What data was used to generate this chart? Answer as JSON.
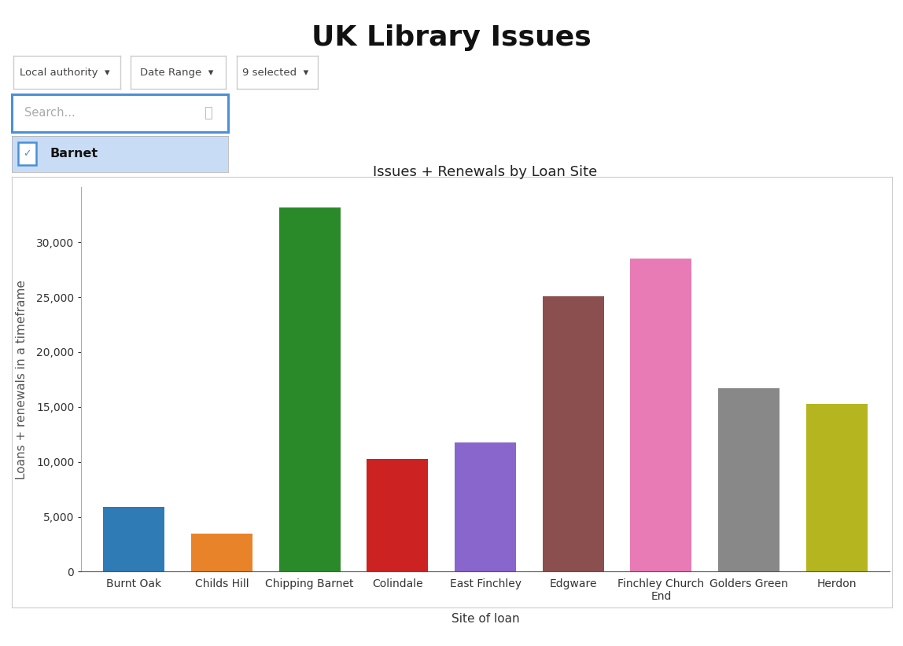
{
  "title": "UK Library Issues",
  "chart_title": "Issues + Renewals by Loan Site",
  "xlabel": "Site of loan",
  "ylabel": "Loans + renewals in a timeframe",
  "categories": [
    "Burnt Oak",
    "Childs Hill",
    "Chipping Barnet",
    "Colindale",
    "East Finchley",
    "Edgware",
    "Finchley Church\nEnd",
    "Golders Green",
    "Herdon"
  ],
  "values": [
    5900,
    3500,
    33200,
    10300,
    11800,
    25100,
    28500,
    16700,
    15300
  ],
  "bar_colors": [
    "#2e7bb5",
    "#e8832a",
    "#2a8a2a",
    "#cc2222",
    "#8866cc",
    "#8b4f4f",
    "#e87ab5",
    "#888888",
    "#b5b520"
  ],
  "ylim": [
    0,
    35000
  ],
  "yticks": [
    0,
    5000,
    10000,
    15000,
    20000,
    25000,
    30000
  ],
  "background_color": "#ffffff",
  "title_fontsize": 26,
  "chart_title_fontsize": 13,
  "axis_label_fontsize": 11,
  "tick_fontsize": 10,
  "filter_labels": [
    "Local authority",
    "Date Range",
    "9 selected"
  ],
  "search_placeholder": "Search...",
  "barnet_label": "Barnet",
  "bar_width": 0.7,
  "panel_color": "#f5f5f5",
  "panel_border": "#dddddd",
  "button_border": "#cccccc",
  "search_border": "#4a90d9",
  "barnet_bg": "#c8ddf5",
  "checkbox_color": "#4a90d9"
}
